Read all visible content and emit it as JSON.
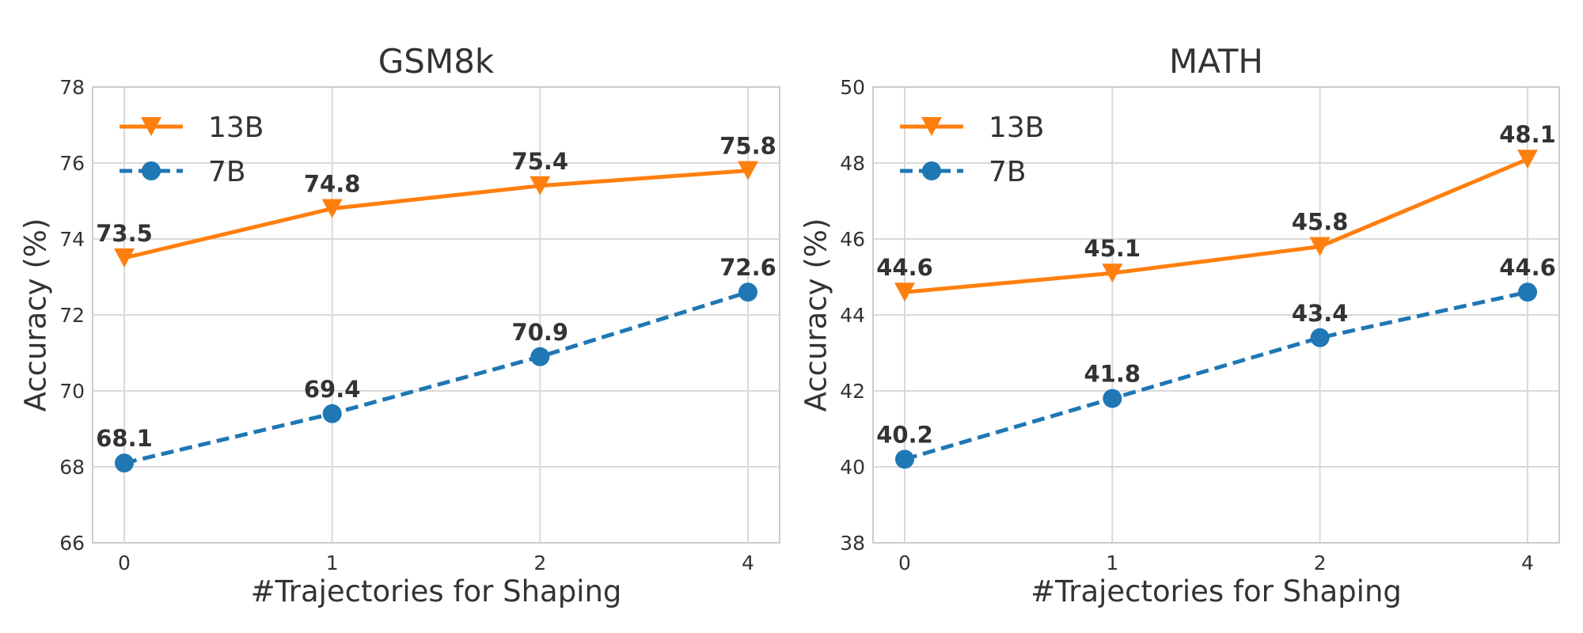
{
  "chart_data": [
    {
      "type": "line",
      "title": "GSM8k",
      "xlabel": "#Trajectories for Shaping",
      "ylabel": "Accuracy (%)",
      "categories": [
        "0",
        "1",
        "2",
        "4"
      ],
      "ylim": [
        66,
        78
      ],
      "yticks": [
        66,
        68,
        70,
        72,
        74,
        76,
        78
      ],
      "grid": true,
      "legend_position": "top-left",
      "series": [
        {
          "name": "13B",
          "values": [
            73.5,
            74.8,
            75.4,
            75.8
          ],
          "color": "#ff7f0e",
          "marker": "triangle-down",
          "linestyle": "solid",
          "labels": [
            "73.5",
            "74.8",
            "75.4",
            "75.8"
          ]
        },
        {
          "name": "7B",
          "values": [
            68.1,
            69.4,
            70.9,
            72.6
          ],
          "color": "#1f77b4",
          "marker": "circle",
          "linestyle": "dashed",
          "labels": [
            "68.1",
            "69.4",
            "70.9",
            "72.6"
          ]
        }
      ]
    },
    {
      "type": "line",
      "title": "MATH",
      "xlabel": "#Trajectories for Shaping",
      "ylabel": "Accuracy (%)",
      "categories": [
        "0",
        "1",
        "2",
        "4"
      ],
      "ylim": [
        38,
        50
      ],
      "yticks": [
        38,
        40,
        42,
        44,
        46,
        48,
        50
      ],
      "grid": true,
      "legend_position": "top-left",
      "series": [
        {
          "name": "13B",
          "values": [
            44.6,
            45.1,
            45.8,
            48.1
          ],
          "color": "#ff7f0e",
          "marker": "triangle-down",
          "linestyle": "solid",
          "labels": [
            "44.6",
            "45.1",
            "45.8",
            "48.1"
          ]
        },
        {
          "name": "7B",
          "values": [
            40.2,
            41.8,
            43.4,
            44.6
          ],
          "color": "#1f77b4",
          "marker": "circle",
          "linestyle": "dashed",
          "labels": [
            "40.2",
            "41.8",
            "43.4",
            "44.6"
          ]
        }
      ]
    }
  ]
}
